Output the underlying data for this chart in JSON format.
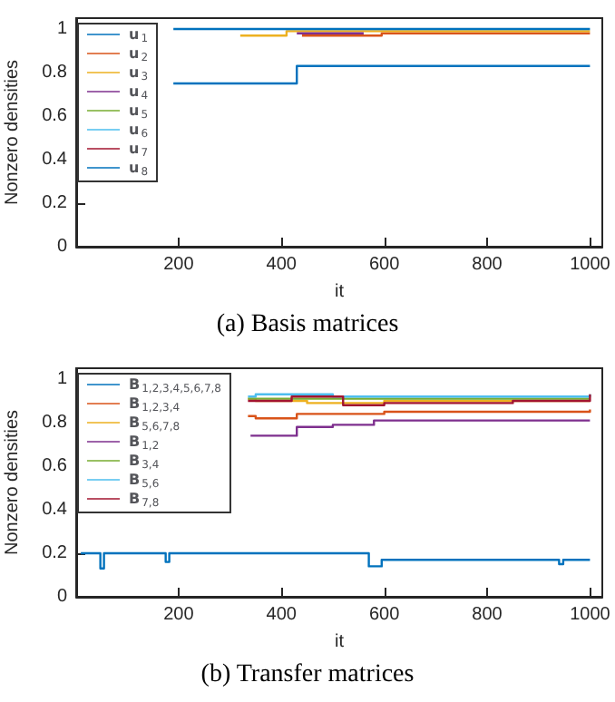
{
  "chart_data": [
    {
      "type": "step",
      "title": "(a) Basis matrices",
      "xlabel": "it",
      "ylabel": "Nonzero densities",
      "xlim": [
        1,
        1024
      ],
      "ylim": [
        0,
        1.05
      ],
      "xticks": [
        200,
        400,
        600,
        800,
        1000
      ],
      "yticks": [
        0,
        0.2,
        0.4,
        0.6,
        0.8,
        1
      ],
      "grid": false,
      "legend": "top left",
      "series": [
        {
          "name": "u$_{1}$",
          "color": "#0072bd",
          "x": [
            190,
            430,
            1000
          ],
          "values": [
            0.75,
            0.83,
            0.83
          ]
        },
        {
          "name": "u$_{2}$",
          "color": "#d95319",
          "x": [
            440,
            595,
            1000
          ],
          "values": [
            0.97,
            0.98,
            0.98
          ]
        },
        {
          "name": "u$_{3}$",
          "color": "#edb120",
          "x": [
            320,
            410,
            1000
          ],
          "values": [
            0.97,
            0.99,
            0.99
          ]
        },
        {
          "name": "u$_{4}$",
          "color": "#7e2f8e",
          "x": [
            430,
            560
          ],
          "values": [
            0.98,
            0.98
          ]
        },
        {
          "name": "u$_{5}$",
          "color": "#77ac30"
        },
        {
          "name": "u$_{6}$",
          "color": "#4dbeee"
        },
        {
          "name": "u$_{7}$",
          "color": "#a2142f"
        },
        {
          "name": "u$_{8}$",
          "color": "#0072bd",
          "x": [
            190,
            1000
          ],
          "values": [
            1,
            1
          ]
        }
      ]
    },
    {
      "type": "step",
      "title": "(b) Transfer matrices",
      "xlabel": "it",
      "ylabel": "Nonzero densities",
      "xlim": [
        1,
        1024
      ],
      "ylim": [
        0,
        1.05
      ],
      "xticks": [
        200,
        400,
        600,
        800,
        1000
      ],
      "yticks": [
        0,
        0.2,
        0.4,
        0.6,
        0.8,
        1
      ],
      "grid": false,
      "legend": "top left",
      "series": [
        {
          "name": "B$_{1,2,3,4,5,6,7,8}$",
          "color": "#0072bd",
          "x": [
            10,
            48,
            55,
            175,
            182,
            570,
            595,
            940,
            948,
            1000
          ],
          "values": [
            0.2,
            0.13,
            0.2,
            0.16,
            0.2,
            0.14,
            0.17,
            0.15,
            0.17,
            0.17
          ]
        },
        {
          "name": "B$_{1,2,3,4}$",
          "color": "#d95319",
          "x": [
            335,
            350,
            430,
            520,
            600,
            1000
          ],
          "values": [
            0.83,
            0.82,
            0.84,
            0.84,
            0.85,
            0.86
          ]
        },
        {
          "name": "B$_{5,6,7,8}$",
          "color": "#edb120",
          "x": [
            335,
            350,
            450,
            600,
            1000
          ],
          "values": [
            0.91,
            0.9,
            0.89,
            0.9,
            0.9
          ]
        },
        {
          "name": "B$_{1,2}$",
          "color": "#7e2f8e",
          "x": [
            340,
            430,
            500,
            580,
            1000
          ],
          "values": [
            0.74,
            0.78,
            0.79,
            0.81,
            0.81
          ]
        },
        {
          "name": "B$_{3,4}$",
          "color": "#77ac30",
          "x": [
            335,
            1000
          ],
          "values": [
            0.91,
            0.91
          ]
        },
        {
          "name": "B$_{5,6}$",
          "color": "#4dbeee",
          "x": [
            335,
            350,
            500,
            1000
          ],
          "values": [
            0.92,
            0.93,
            0.92,
            0.93
          ]
        },
        {
          "name": "B$_{7,8}$",
          "color": "#a2142f",
          "x": [
            335,
            420,
            520,
            600,
            850,
            1000
          ],
          "values": [
            0.9,
            0.92,
            0.88,
            0.89,
            0.9,
            0.93
          ]
        }
      ]
    }
  ]
}
